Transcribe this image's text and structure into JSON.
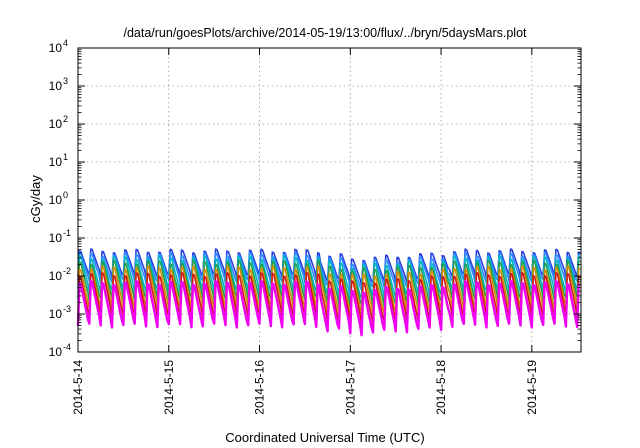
{
  "chart_data": {
    "type": "line",
    "title": "/data/run/goesPlots/archive/2014-05-19/13:00/flux/../bryn/5daysMars.plot",
    "xlabel": "Coordinated Universal Time (UTC)",
    "ylabel": "cGy/day",
    "yscale": "log",
    "ylim": [
      0.0001,
      10000
    ],
    "xlim": [
      "2014-05-14T00:00",
      "2014-05-19T13:00"
    ],
    "grid": true,
    "x_ticks": [
      {
        "date": "2014-05-14T00:00",
        "label": "2014-5-14"
      },
      {
        "date": "2014-05-15T00:00",
        "label": "2014-5-15"
      },
      {
        "date": "2014-05-16T00:00",
        "label": "2014-5-16"
      },
      {
        "date": "2014-05-17T00:00",
        "label": "2014-5-17"
      },
      {
        "date": "2014-05-18T00:00",
        "label": "2014-5-18"
      },
      {
        "date": "2014-05-19T00:00",
        "label": "2014-5-19"
      }
    ],
    "y_ticks": [
      {
        "value": 0.0001,
        "base": "10",
        "exp": "-4"
      },
      {
        "value": 0.001,
        "base": "10",
        "exp": "-3"
      },
      {
        "value": 0.01,
        "base": "10",
        "exp": "-2"
      },
      {
        "value": 0.1,
        "base": "10",
        "exp": "-1"
      },
      {
        "value": 1,
        "base": "10",
        "exp": "0"
      },
      {
        "value": 10,
        "base": "10",
        "exp": "1"
      },
      {
        "value": 100,
        "base": "10",
        "exp": "2"
      },
      {
        "value": 1000,
        "base": "10",
        "exp": "3"
      },
      {
        "value": 10000,
        "base": "10",
        "exp": "4"
      }
    ],
    "pattern": {
      "period_hours": 3,
      "peak_values": [
        0.055,
        0.045,
        0.038,
        0.03,
        0.022,
        0.015,
        0.009
      ],
      "trough_values": [
        0.01,
        0.007,
        0.004,
        0.0025,
        0.0015,
        0.0009,
        0.0005
      ]
    },
    "series": [
      {
        "color": "#2a3fe0"
      },
      {
        "color": "#2a8cff"
      },
      {
        "color": "#00b4c8"
      },
      {
        "color": "#1ea050"
      },
      {
        "color": "#d08c00"
      },
      {
        "color": "#d01818"
      },
      {
        "color": "#f000f0"
      }
    ]
  }
}
